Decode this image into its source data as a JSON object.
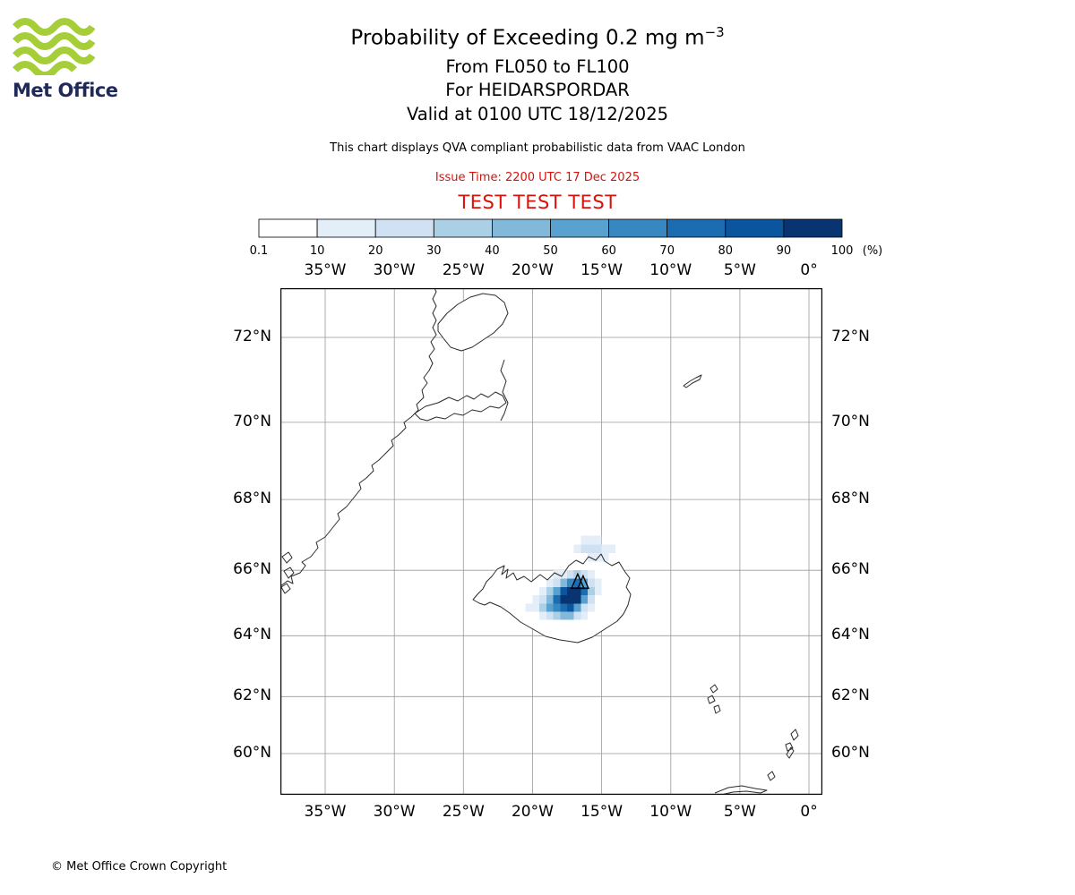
{
  "logo": {
    "brand": "Met Office"
  },
  "header": {
    "title_main": "Probability of Exceeding 0.2 mg m",
    "title_sup": "−3",
    "flight_levels": "From FL050 to FL100",
    "volcano_line": "For HEIDARSPORDAR",
    "valid_line": "Valid at 0100 UTC 18/12/2025",
    "disclaimer": "This chart displays QVA compliant probabilistic data from VAAC London",
    "issue_time": "Issue Time: 2200 UTC 17 Dec 2025",
    "test_banner": "TEST TEST TEST"
  },
  "colors": {
    "red": "#d8120b",
    "logo_green": "#a6ce39",
    "logo_navy": "#1f2a5a",
    "grid_gray": "#999999",
    "coast_black": "#2b2b2b"
  },
  "colorbar": {
    "tick_labels": [
      "0.1",
      "10",
      "20",
      "30",
      "40",
      "50",
      "60",
      "70",
      "80",
      "90",
      "100"
    ],
    "unit": "(%)",
    "colors": [
      "#ffffff",
      "#e3eef9",
      "#cfe1f2",
      "#abcfe5",
      "#82b9db",
      "#59a1cf",
      "#3787c0",
      "#1c6cb1",
      "#0b559f",
      "#083572"
    ]
  },
  "map": {
    "lon_ticks": [
      {
        "lon": -35,
        "label": "35°W"
      },
      {
        "lon": -30,
        "label": "30°W"
      },
      {
        "lon": -25,
        "label": "25°W"
      },
      {
        "lon": -20,
        "label": "20°W"
      },
      {
        "lon": -15,
        "label": "15°W"
      },
      {
        "lon": -10,
        "label": "10°W"
      },
      {
        "lon": -5,
        "label": "5°W"
      },
      {
        "lon": 0,
        "label": "0°"
      }
    ],
    "lat_ticks": [
      {
        "lat": 72,
        "label": "72°N"
      },
      {
        "lat": 70,
        "label": "70°N"
      },
      {
        "lat": 68,
        "label": "68°N"
      },
      {
        "lat": 66,
        "label": "66°N"
      },
      {
        "lat": 64,
        "label": "64°N"
      },
      {
        "lat": 62,
        "label": "62°N"
      },
      {
        "lat": 60,
        "label": "60°N"
      }
    ],
    "volcano": {
      "name": "HEIDARSPORDAR",
      "lon": -16.6,
      "lat": 65.65
    }
  },
  "chart_data": {
    "type": "heatmap",
    "title": "Probability of Exceeding 0.2 mg m−3",
    "subtitle": "From FL050 to FL100, For HEIDARSPORDAR, Valid at 0100 UTC 18/12/2025",
    "units": "%",
    "projection": "mercator",
    "x_ticks": [
      "35°W",
      "30°W",
      "25°W",
      "20°W",
      "15°W",
      "10°W",
      "5°W",
      "0°"
    ],
    "y_ticks": [
      "72°N",
      "70°N",
      "68°N",
      "66°N",
      "64°N",
      "62°N",
      "60°N"
    ],
    "thresholds": [
      0.1,
      10,
      20,
      30,
      40,
      50,
      60,
      70,
      80,
      90,
      100
    ],
    "cell_size_deg": {
      "lon": 0.5,
      "lat": 0.25
    },
    "cells_format": [
      "lon_west_edge",
      "lat_south_edge",
      "probability_percent"
    ],
    "cells": [
      [
        -16.5,
        66.75,
        10
      ],
      [
        -16,
        66.75,
        15
      ],
      [
        -15.5,
        66.75,
        10
      ],
      [
        -17,
        66.5,
        10
      ],
      [
        -16.5,
        66.5,
        20
      ],
      [
        -16,
        66.5,
        25
      ],
      [
        -15.5,
        66.5,
        20
      ],
      [
        -15,
        66.5,
        10
      ],
      [
        -14.5,
        66.5,
        10
      ],
      [
        -16,
        66.25,
        15
      ],
      [
        -15.5,
        66.25,
        15
      ],
      [
        -15,
        66.25,
        10
      ],
      [
        -18.5,
        65.75,
        10
      ],
      [
        -18,
        65.75,
        15
      ],
      [
        -17.5,
        65.75,
        25
      ],
      [
        -17,
        65.75,
        30
      ],
      [
        -16.5,
        65.75,
        20
      ],
      [
        -16,
        65.75,
        10
      ],
      [
        -19,
        65.5,
        10
      ],
      [
        -18.5,
        65.5,
        25
      ],
      [
        -18,
        65.5,
        45
      ],
      [
        -17.5,
        65.5,
        65
      ],
      [
        -17,
        65.5,
        70
      ],
      [
        -16.5,
        65.5,
        50
      ],
      [
        -16,
        65.5,
        20
      ],
      [
        -15.5,
        65.5,
        10
      ],
      [
        -19.5,
        65.25,
        15
      ],
      [
        -19,
        65.25,
        35
      ],
      [
        -18.5,
        65.25,
        55
      ],
      [
        -18,
        65.25,
        85
      ],
      [
        -17.5,
        65.25,
        95
      ],
      [
        -17,
        65.25,
        95
      ],
      [
        -16.5,
        65.25,
        70
      ],
      [
        -16,
        65.25,
        30
      ],
      [
        -15.5,
        65.25,
        10
      ],
      [
        -20,
        65,
        10
      ],
      [
        -19.5,
        65,
        25
      ],
      [
        -19,
        65,
        45
      ],
      [
        -18.5,
        65,
        70
      ],
      [
        -18,
        65,
        95
      ],
      [
        -17.5,
        65,
        100
      ],
      [
        -17,
        65,
        90
      ],
      [
        -16.5,
        65,
        55
      ],
      [
        -16,
        65,
        20
      ],
      [
        -20.5,
        64.75,
        10
      ],
      [
        -20,
        64.75,
        15
      ],
      [
        -19.5,
        64.75,
        35
      ],
      [
        -19,
        64.75,
        55
      ],
      [
        -18.5,
        64.75,
        65
      ],
      [
        -18,
        64.75,
        75
      ],
      [
        -17.5,
        64.75,
        80
      ],
      [
        -17,
        64.75,
        55
      ],
      [
        -16.5,
        64.75,
        25
      ],
      [
        -16,
        64.75,
        10
      ],
      [
        -19.5,
        64.5,
        10
      ],
      [
        -19,
        64.5,
        20
      ],
      [
        -18.5,
        64.5,
        35
      ],
      [
        -18,
        64.5,
        45
      ],
      [
        -17.5,
        64.5,
        40
      ],
      [
        -17,
        64.5,
        20
      ],
      [
        -16.5,
        64.5,
        10
      ]
    ]
  },
  "footer": {
    "copyright": "© Met Office Crown Copyright"
  }
}
